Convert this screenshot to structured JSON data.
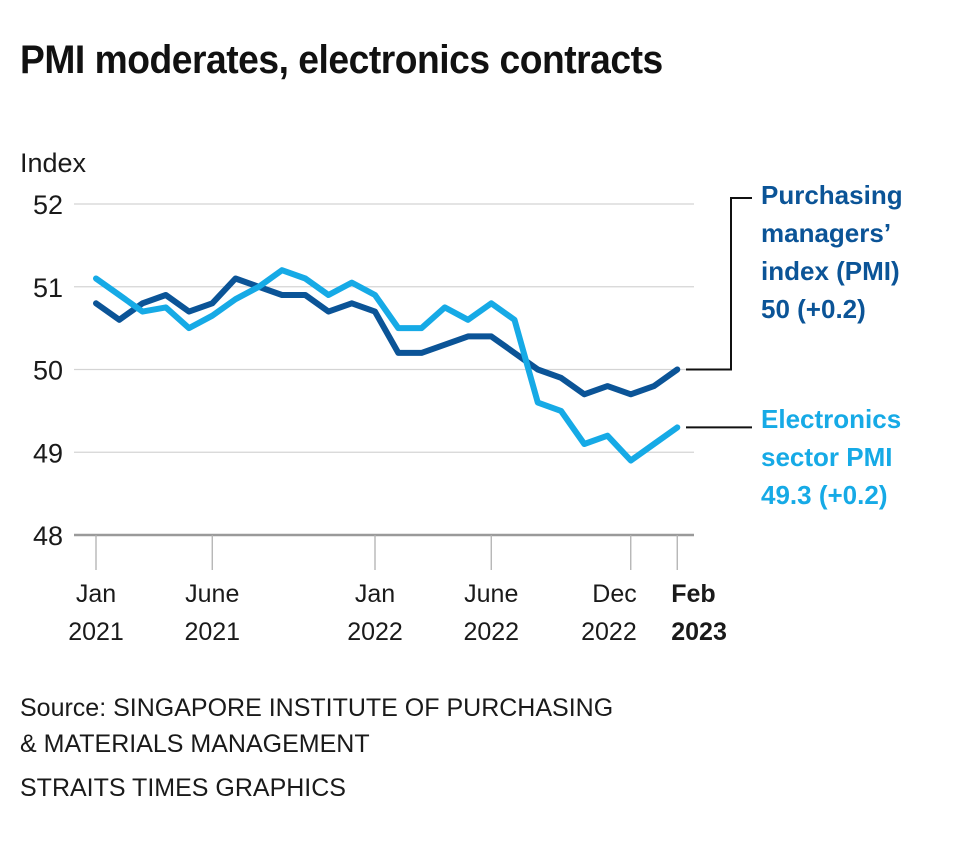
{
  "title": "PMI moderates, electronics contracts",
  "chart_data": {
    "type": "line",
    "title": "PMI moderates, electronics contracts",
    "ylabel": "Index",
    "xlabel": "",
    "ylim": [
      48,
      52
    ],
    "yticks": [
      52,
      51,
      50,
      49,
      48
    ],
    "grid": true,
    "x": [
      "Jan 2021",
      "Feb 2021",
      "Mar 2021",
      "Apr 2021",
      "May 2021",
      "Jun 2021",
      "Jul 2021",
      "Aug 2021",
      "Sep 2021",
      "Oct 2021",
      "Nov 2021",
      "Dec 2021",
      "Jan 2022",
      "Feb 2022",
      "Mar 2022",
      "Apr 2022",
      "May 2022",
      "Jun 2022",
      "Jul 2022",
      "Aug 2022",
      "Sep 2022",
      "Oct 2022",
      "Nov 2022",
      "Dec 2022",
      "Jan 2023",
      "Feb 2023"
    ],
    "xticks": [
      {
        "index": 0,
        "line1": "Jan",
        "line2": "2021",
        "bold": false
      },
      {
        "index": 5,
        "line1": "June",
        "line2": "2021",
        "bold": false
      },
      {
        "index": 12,
        "line1": "Jan",
        "line2": "2022",
        "bold": false
      },
      {
        "index": 17,
        "line1": "June",
        "line2": "2022",
        "bold": false
      },
      {
        "index": 23,
        "line1": "Dec",
        "line2": "2022",
        "bold": false
      },
      {
        "index": 25,
        "line1": "Feb",
        "line2": "2023",
        "bold": true
      }
    ],
    "series": [
      {
        "name": "Purchasing managers' index (PMI)",
        "label_lines": [
          "Purchasing",
          "managers’",
          "index (PMI)",
          "50 (+0.2)"
        ],
        "color": "#0b5497",
        "values": [
          50.8,
          50.6,
          50.8,
          50.9,
          50.7,
          50.8,
          51.1,
          51.0,
          50.9,
          50.9,
          50.7,
          50.8,
          50.7,
          50.2,
          50.2,
          50.3,
          50.4,
          50.4,
          50.2,
          50.0,
          49.9,
          49.7,
          49.8,
          49.7,
          49.8,
          50.0
        ]
      },
      {
        "name": "Electronics sector PMI",
        "label_lines": [
          "Electronics",
          "sector PMI",
          "49.3 (+0.2)"
        ],
        "color": "#16aae6",
        "values": [
          51.1,
          50.9,
          50.7,
          50.75,
          50.5,
          50.65,
          50.85,
          51.0,
          51.2,
          51.1,
          50.9,
          51.05,
          50.9,
          50.5,
          50.5,
          50.75,
          50.6,
          50.8,
          50.6,
          49.6,
          49.5,
          49.1,
          49.2,
          48.9,
          49.1,
          49.3
        ]
      }
    ],
    "legend": "right, direct labels at line ends"
  },
  "footer": {
    "source_line1": "Source: SINGAPORE INSTITUTE OF PURCHASING",
    "source_line2": "& MATERIALS MANAGEMENT",
    "credit": "STRAITS TIMES GRAPHICS"
  }
}
